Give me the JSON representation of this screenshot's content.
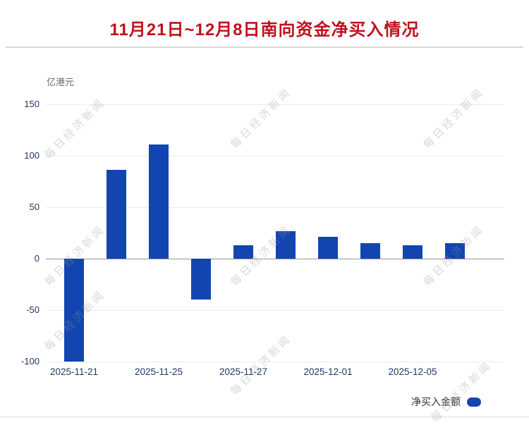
{
  "page": {
    "title": "11月21日~12月8日南向资金净买入情况"
  },
  "colors": {
    "title": "#c0111d",
    "bar": "#1345b0",
    "axis_label": "#1f3864"
  },
  "watermark": {
    "text": "每日经济新闻"
  },
  "legend": {
    "label": "净买入金额"
  },
  "chart_data": {
    "type": "bar",
    "title": "11月21日~12月8日南向资金净买入情况",
    "unit_label": "亿港元",
    "xlabel": "",
    "ylabel": "亿港元",
    "values": [
      -100,
      86,
      111,
      -40,
      13,
      27,
      21,
      15,
      13,
      15
    ],
    "bar_color": "#1345b0",
    "ylim": [
      -100,
      150
    ],
    "yticks": [
      150,
      100,
      50,
      0,
      -50,
      -100
    ],
    "xticks": [
      {
        "index": 0,
        "label": "2025-11-21"
      },
      {
        "index": 2,
        "label": "2025-11-25"
      },
      {
        "index": 4,
        "label": "2025-11-27"
      },
      {
        "index": 6,
        "label": "2025-12-01"
      },
      {
        "index": 8,
        "label": "2025-12-05"
      }
    ],
    "grid": true,
    "legend_entries": [
      "净买入金额"
    ],
    "legend_position": "bottom-right"
  }
}
